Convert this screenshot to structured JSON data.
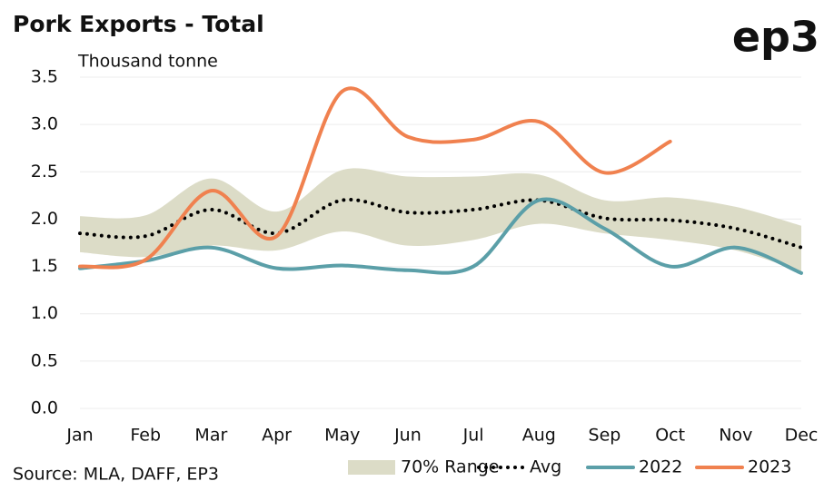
{
  "chart_data": {
    "type": "line",
    "title": "Pork Exports - Total",
    "subtitle": "Thousand tonne",
    "logo": "ep3",
    "source": "Source: MLA, DAFF, EP3",
    "categories": [
      "Jan",
      "Feb",
      "Mar",
      "Apr",
      "May",
      "Jun",
      "Jul",
      "Aug",
      "Sep",
      "Oct",
      "Nov",
      "Dec"
    ],
    "ylim": [
      0,
      3.5
    ],
    "yticks": [
      {
        "value": 0,
        "label": "0.0"
      },
      0.5,
      {
        "value": 1,
        "label": "1.0"
      },
      1.5,
      {
        "value": 2,
        "label": "2.0"
      },
      2.5,
      {
        "value": 3,
        "label": "3.0"
      },
      3.5
    ],
    "grid": true,
    "legend": "bottom",
    "series": [
      {
        "name": "70% Range",
        "kind": "band",
        "color": "#dcdcc7",
        "lower": [
          1.65,
          1.6,
          1.72,
          1.67,
          1.87,
          1.72,
          1.78,
          1.95,
          1.85,
          1.78,
          1.67,
          1.45
        ],
        "upper": [
          2.03,
          2.04,
          2.43,
          2.08,
          2.52,
          2.45,
          2.45,
          2.47,
          2.2,
          2.23,
          2.13,
          1.93
        ]
      },
      {
        "name": "Avg",
        "kind": "dotted",
        "color": "#000000",
        "values": [
          1.85,
          1.82,
          2.1,
          1.85,
          2.2,
          2.07,
          2.1,
          2.2,
          2.01,
          1.99,
          1.9,
          1.7
        ]
      },
      {
        "name": "2022",
        "kind": "line",
        "color": "#5b9fa8",
        "values": [
          1.48,
          1.56,
          1.7,
          1.48,
          1.51,
          1.46,
          1.5,
          2.2,
          1.9,
          1.5,
          1.7,
          1.43
        ]
      },
      {
        "name": "2023",
        "kind": "line",
        "color": "#f0814f",
        "values": [
          1.5,
          1.57,
          2.3,
          1.82,
          3.35,
          2.87,
          2.84,
          3.03,
          2.49,
          2.82,
          null,
          null
        ]
      }
    ]
  }
}
